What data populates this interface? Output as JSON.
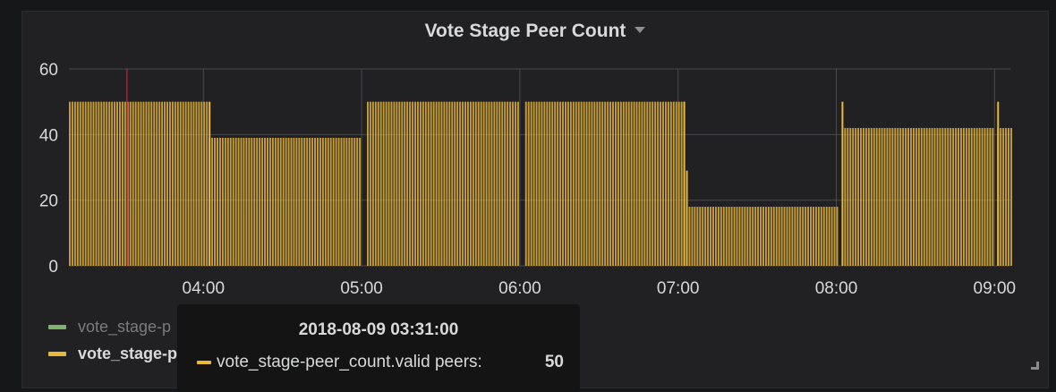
{
  "panel": {
    "title": "Vote Stage Peer Count"
  },
  "colors": {
    "background": "#161719",
    "panel": "#212124",
    "text": "#d8d9da",
    "grid": "#4a4a4d",
    "series_green": "#7eb26d",
    "series_yellow": "#eab839",
    "crosshair": "#c4162a"
  },
  "legend": {
    "items": [
      {
        "label": "vote_stage-p",
        "color": "#7eb26d"
      },
      {
        "label": "vote_stage-p",
        "color": "#eab839"
      }
    ]
  },
  "tooltip": {
    "time": "2018-08-09 03:31:00",
    "series_label": "vote_stage-peer_count.valid peers:",
    "value": "50",
    "color": "#eab839"
  },
  "chart_data": {
    "type": "bar",
    "title": "Vote Stage Peer Count",
    "ylim": [
      0,
      60
    ],
    "yticks": [
      "0",
      "20",
      "40",
      "60"
    ],
    "xticks": [
      "04:00",
      "05:00",
      "06:00",
      "07:00",
      "08:00",
      "09:00"
    ],
    "x_range_minutes": [
      "03:09",
      "09:06"
    ],
    "grid": true,
    "crosshair_time": "03:31",
    "series": [
      {
        "name": "vote_stage-peer_count.valid peers",
        "color": "#eab839",
        "segments": [
          {
            "from": "03:09",
            "to": "04:01",
            "value": 50
          },
          {
            "from": "04:02",
            "to": "04:59",
            "value": 39
          },
          {
            "from": "05:02",
            "to": "05:59",
            "value": 50
          },
          {
            "from": "06:02",
            "to": "07:02",
            "value": 50
          },
          {
            "from": "07:03",
            "to": "08:00",
            "value": 18
          },
          {
            "from": "08:03",
            "to": "08:59",
            "value": 42
          },
          {
            "from": "09:01",
            "to": "09:06",
            "value": 42
          }
        ],
        "spikes": [
          {
            "time": "04:02",
            "value": 50
          },
          {
            "time": "07:02",
            "value": 50
          },
          {
            "time": "07:03",
            "value": 29
          },
          {
            "time": "08:02",
            "value": 50
          },
          {
            "time": "09:01",
            "value": 50
          }
        ]
      }
    ]
  }
}
